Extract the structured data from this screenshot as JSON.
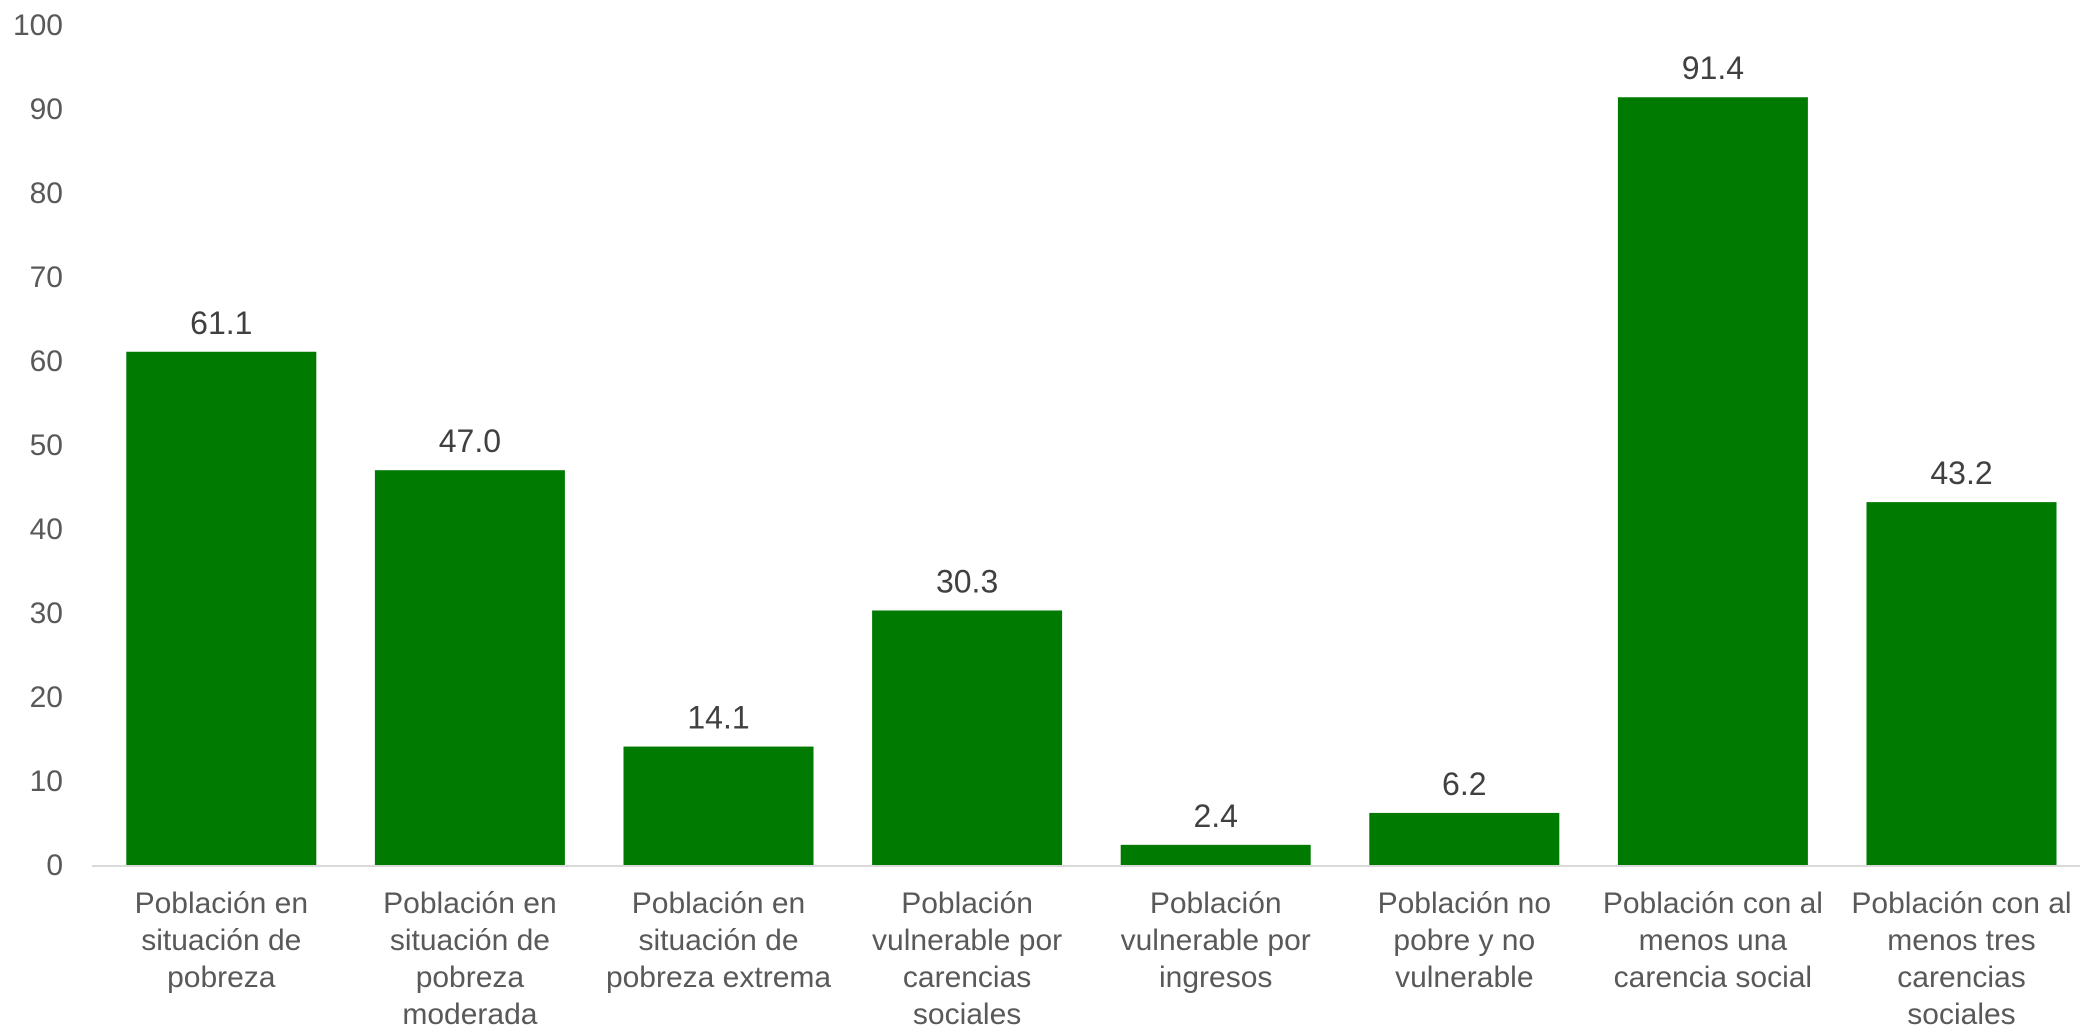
{
  "chart_data": {
    "type": "bar",
    "categories": [
      "Población en situación de pobreza",
      "Población en situación de pobreza moderada",
      "Población en situación de pobreza extrema",
      "Población vulnerable por carencias sociales",
      "Población vulnerable por ingresos",
      "Población no pobre y no vulnerable",
      "Población con al menos una carencia social",
      "Población con al menos tres carencias sociales"
    ],
    "category_lines": [
      [
        "Población en",
        "situación de",
        "pobreza"
      ],
      [
        "Población en",
        "situación de",
        "pobreza",
        "moderada"
      ],
      [
        "Población en",
        "situación de",
        "pobreza extrema"
      ],
      [
        "Población",
        "vulnerable por",
        "carencias",
        "sociales"
      ],
      [
        "Población",
        "vulnerable por",
        "ingresos"
      ],
      [
        "Población no",
        "pobre y no",
        "vulnerable"
      ],
      [
        "Población con al",
        "menos una",
        "carencia social"
      ],
      [
        "Población con al",
        "menos tres",
        "carencias",
        "sociales"
      ]
    ],
    "values": [
      61.1,
      47.0,
      14.1,
      30.3,
      2.4,
      6.2,
      91.4,
      43.2
    ],
    "value_labels": [
      "61.1",
      "47.0",
      "14.1",
      "30.3",
      "2.4",
      "6.2",
      "91.4",
      "43.2"
    ],
    "y_ticks": [
      "0",
      "10",
      "20",
      "30",
      "40",
      "50",
      "60",
      "70",
      "80",
      "90",
      "100"
    ],
    "ylim": [
      0,
      100
    ],
    "grid": false,
    "legend": "none",
    "title": "",
    "xlabel": "",
    "ylabel": "",
    "bar_color": "#007A00",
    "axis_color": "#D9D9D9"
  }
}
